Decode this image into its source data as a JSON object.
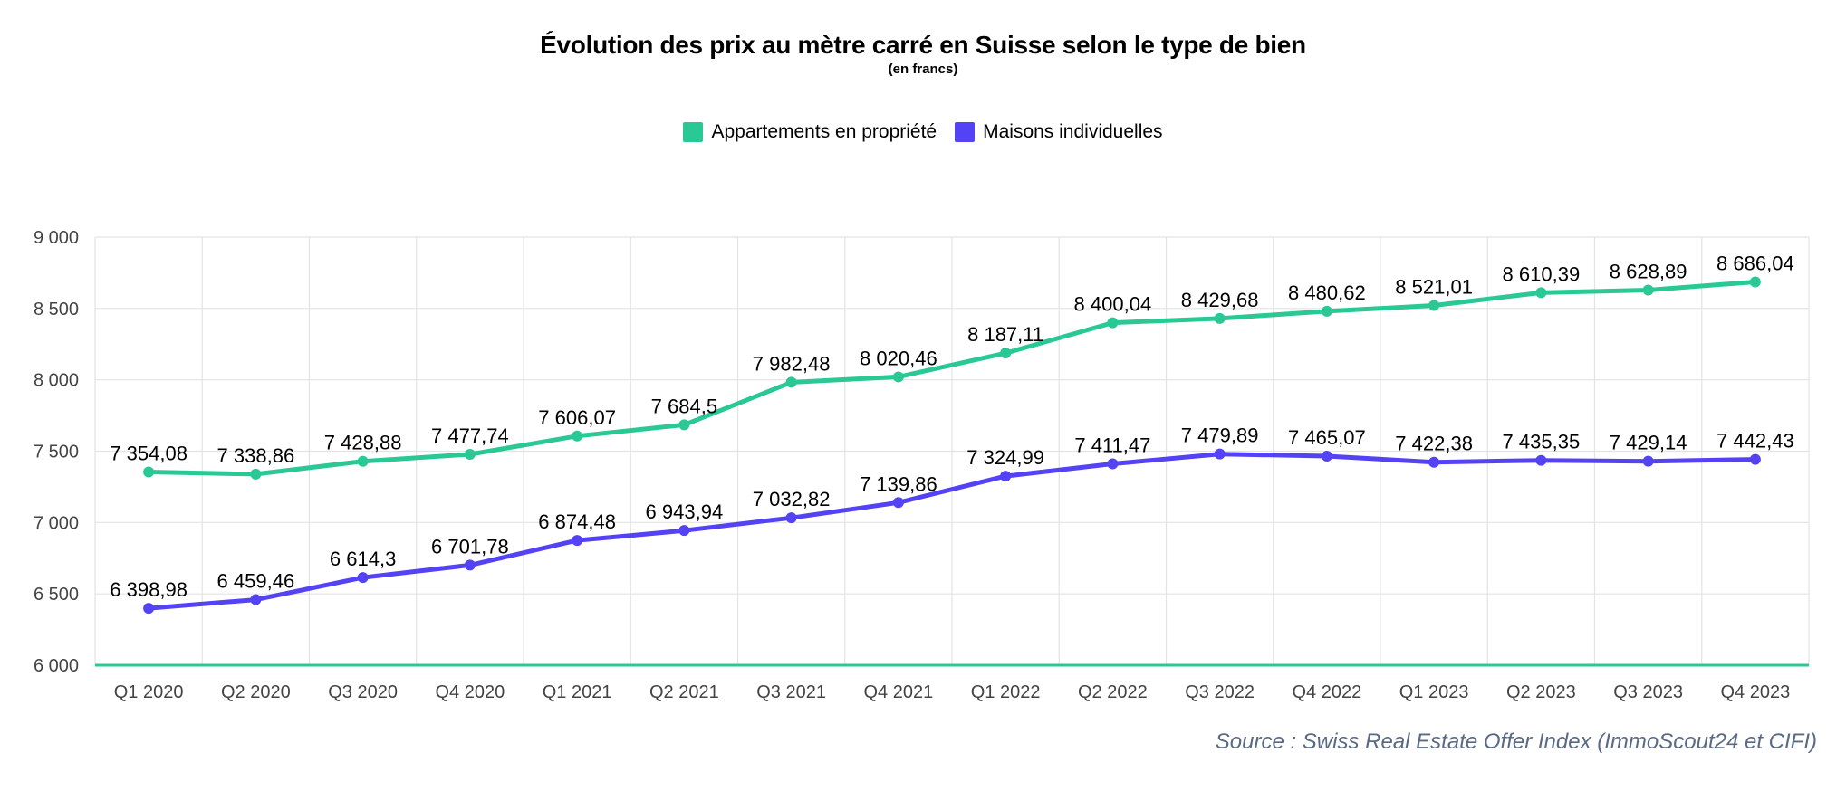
{
  "chart_data": {
    "type": "line",
    "title": "Évolution des prix au mètre carré en Suisse selon le type de bien",
    "subtitle": "(en francs)",
    "categories": [
      "Q1 2020",
      "Q2 2020",
      "Q3 2020",
      "Q4 2020",
      "Q1 2021",
      "Q2 2021",
      "Q3 2021",
      "Q4 2021",
      "Q1 2022",
      "Q2 2022",
      "Q3 2022",
      "Q4 2022",
      "Q1 2023",
      "Q2 2023",
      "Q3 2023",
      "Q4 2023"
    ],
    "series": [
      {
        "name": "Appartements en propriété",
        "color": "#2ac894",
        "values": [
          7354.08,
          7338.86,
          7428.88,
          7477.74,
          7606.07,
          7684.5,
          7982.48,
          8020.46,
          8187.11,
          8400.04,
          8429.68,
          8480.62,
          8521.01,
          8610.39,
          8628.89,
          8686.04
        ],
        "labels": [
          "7 354,08",
          "7 338,86",
          "7 428,88",
          "7 477,74",
          "7 606,07",
          "7 684,5",
          "7 982,48",
          "8 020,46",
          "8 187,11",
          "8 400,04",
          "8 429,68",
          "8 480,62",
          "8 521,01",
          "8 610,39",
          "8 628,89",
          "8 686,04"
        ]
      },
      {
        "name": "Maisons individuelles",
        "color": "#5442f5",
        "values": [
          6398.98,
          6459.46,
          6614.3,
          6701.78,
          6874.48,
          6943.94,
          7032.82,
          7139.86,
          7324.99,
          7411.47,
          7479.89,
          7465.07,
          7422.38,
          7435.35,
          7429.14,
          7442.43
        ],
        "labels": [
          "6 398,98",
          "6 459,46",
          "6 614,3",
          "6 701,78",
          "6 874,48",
          "6 943,94",
          "7 032,82",
          "7 139,86",
          "7 324,99",
          "7 411,47",
          "7 479,89",
          "7 465,07",
          "7 422,38",
          "7 435,35",
          "7 429,14",
          "7 442,43"
        ]
      }
    ],
    "ylim": [
      6000,
      9000
    ],
    "yticks": [
      "6 000",
      "6 500",
      "7 000",
      "7 500",
      "8 000",
      "8 500",
      "9 000"
    ],
    "grid": true,
    "legend_position": "top-center",
    "baseline_color": "#2ac894",
    "source": "Source : Swiss Real Estate Offer Index (ImmoScout24 et CIFI)"
  }
}
